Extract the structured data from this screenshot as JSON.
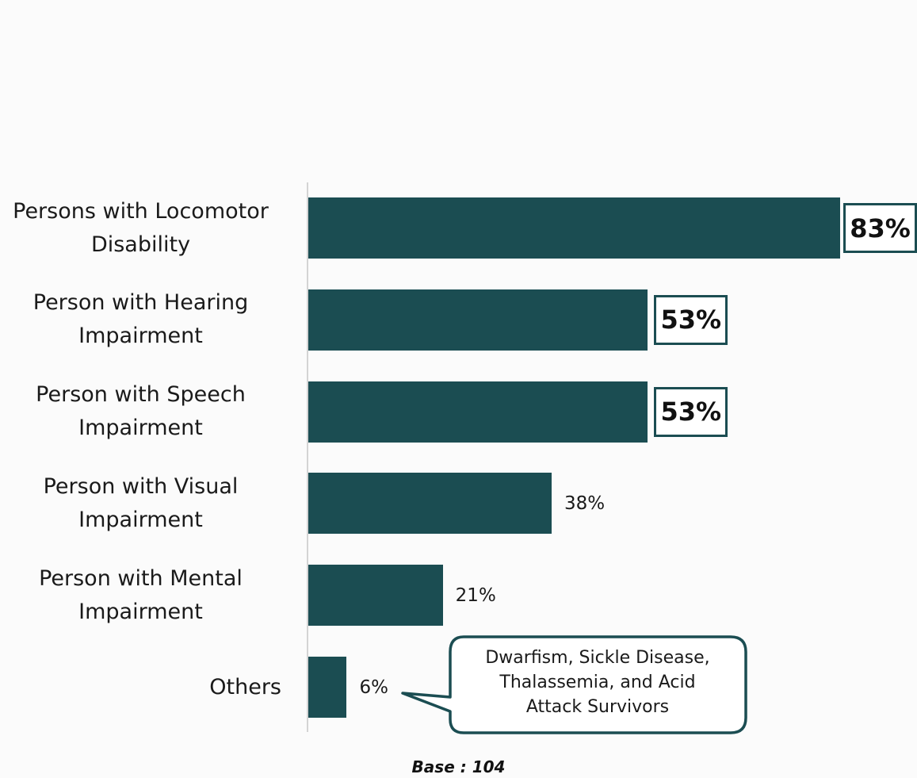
{
  "chart_data": {
    "type": "bar",
    "orientation": "horizontal",
    "categories": [
      "Persons with Locomotor\nDisability",
      "Person with Hearing\nImpairment",
      "Person with Speech\nImpairment",
      "Person with Visual\nImpairment",
      "Person with Mental\nImpairment",
      "Others"
    ],
    "values": [
      83,
      53,
      53,
      38,
      21,
      6
    ],
    "value_labels": [
      "83%",
      "53%",
      "53%",
      "38%",
      "21%",
      "6%"
    ],
    "highlighted": [
      true,
      true,
      true,
      false,
      false,
      false
    ],
    "xlim": [
      0,
      100
    ],
    "grid": false,
    "bar_color": "#1b4d52"
  },
  "annotation": {
    "text": "Dwarfism, Sickle Disease, Thalassemia, and Acid Attack Survivors",
    "lines": [
      "Dwarfism, Sickle Disease,",
      "Thalassemia, and Acid",
      "Attack Survivors"
    ],
    "points_to": "Others"
  },
  "base_note": {
    "label": "Base",
    "separator": " : ",
    "value": "104"
  },
  "colors": {
    "bar": "#1b4d52",
    "box_border": "#1b4d52",
    "background": "#fbfbfb"
  }
}
